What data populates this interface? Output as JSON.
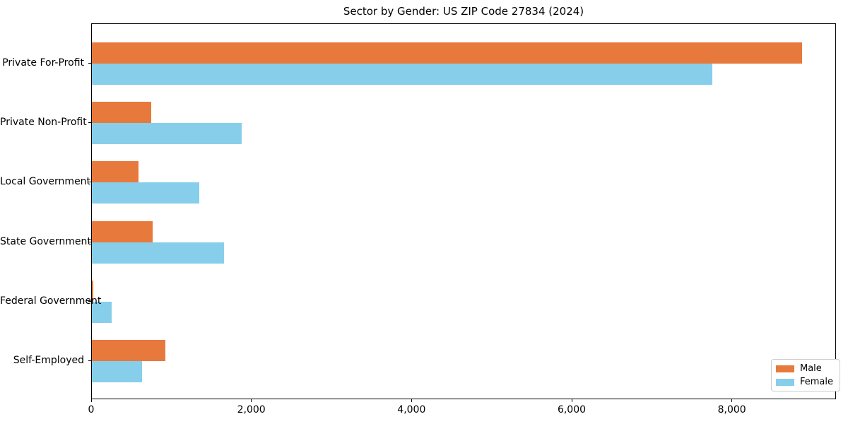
{
  "chart_data": {
    "type": "bar",
    "orientation": "horizontal",
    "title": "Sector by Gender: US ZIP Code 27834 (2024)",
    "categories": [
      "Private For-Profit",
      "Private Non-Profit",
      "Local Government",
      "State Government",
      "Federal Government",
      "Self-Employed"
    ],
    "series": [
      {
        "name": "Male",
        "color": "#e8793d",
        "values": [
          8870,
          740,
          580,
          760,
          15,
          920
        ]
      },
      {
        "name": "Female",
        "color": "#87ceeb",
        "values": [
          7750,
          1870,
          1340,
          1650,
          250,
          630
        ]
      }
    ],
    "xlabel": "",
    "ylabel": "",
    "xlim": [
      0,
      9300
    ],
    "xticks": [
      0,
      2000,
      4000,
      6000,
      8000
    ],
    "xtick_labels": [
      "0",
      "2,000",
      "4,000",
      "6,000",
      "8,000"
    ],
    "grid": false,
    "legend": {
      "position": "lower right",
      "entries": [
        "Male",
        "Female"
      ]
    },
    "colors": {
      "male": "#e8793d",
      "female": "#87ceeb",
      "spine": "#000000",
      "legend_border": "#cccccc",
      "text": "#000000"
    }
  }
}
